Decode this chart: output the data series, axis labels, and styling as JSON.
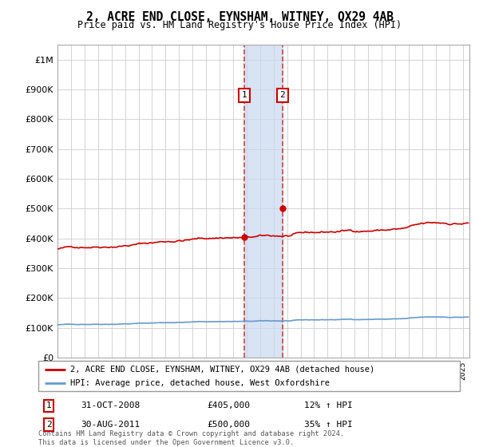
{
  "title": "2, ACRE END CLOSE, EYNSHAM, WITNEY, OX29 4AB",
  "subtitle": "Price paid vs. HM Land Registry's House Price Index (HPI)",
  "legend_line1": "2, ACRE END CLOSE, EYNSHAM, WITNEY, OX29 4AB (detached house)",
  "legend_line2": "HPI: Average price, detached house, West Oxfordshire",
  "table_row1_num": "1",
  "table_row1_date": "31-OCT-2008",
  "table_row1_price": "£405,000",
  "table_row1_hpi": "12% ↑ HPI",
  "table_row2_num": "2",
  "table_row2_date": "30-AUG-2011",
  "table_row2_price": "£500,000",
  "table_row2_hpi": "35% ↑ HPI",
  "footnote": "Contains HM Land Registry data © Crown copyright and database right 2024.\nThis data is licensed under the Open Government Licence v3.0.",
  "sale1_date": 2008.83,
  "sale1_price": 405000,
  "sale2_date": 2011.66,
  "sale2_price": 500000,
  "red_line_color": "#cc0000",
  "blue_line_color": "#6699cc",
  "shade_color": "#c8d8f0",
  "dashed_line_color": "#cc4444",
  "marker_color": "#cc0000",
  "ylim_min": 0,
  "ylim_max": 1050000,
  "xlim_min": 1995,
  "xlim_max": 2025.5,
  "background_color": "#ffffff",
  "grid_color": "#cccccc"
}
